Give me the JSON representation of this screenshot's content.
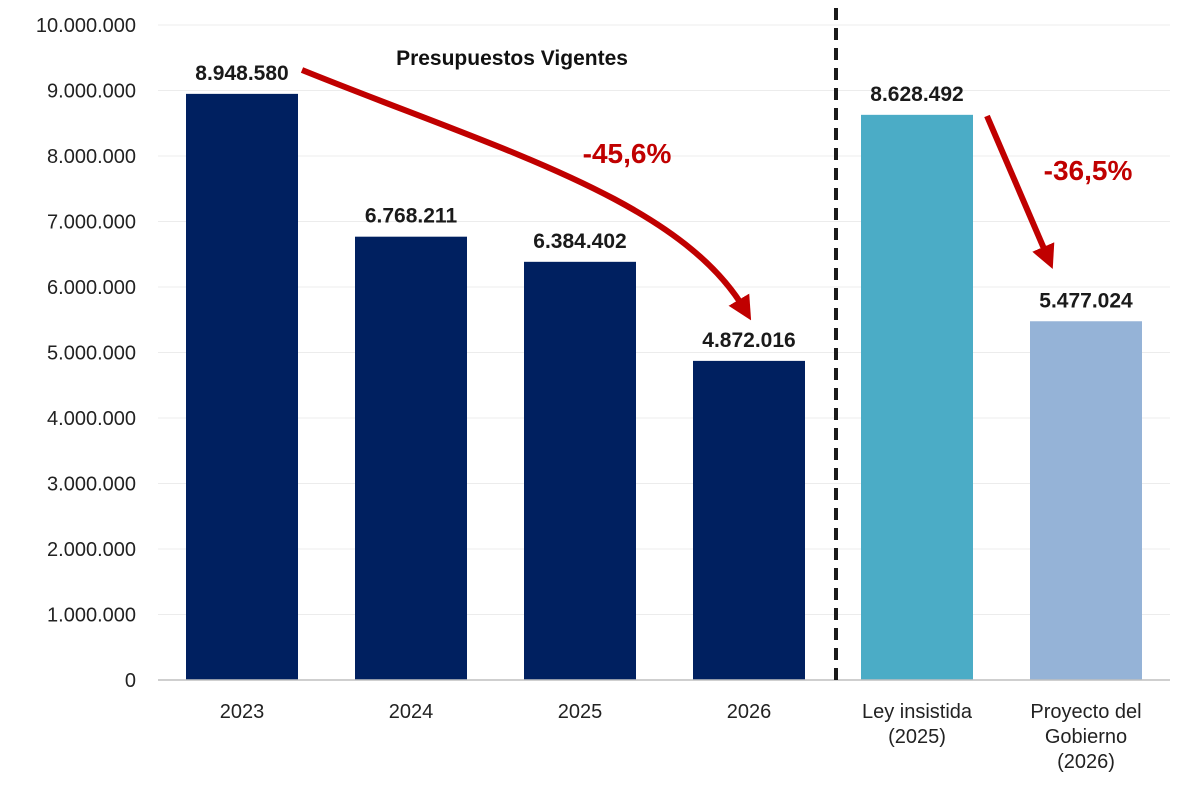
{
  "chart_data": {
    "type": "bar",
    "title": "Presupuestos Vigentes",
    "xlabel": "",
    "ylabel": "",
    "ylim": [
      0,
      10000000
    ],
    "yticks": [
      "0",
      "1.000.000",
      "2.000.000",
      "3.000.000",
      "4.000.000",
      "5.000.000",
      "6.000.000",
      "7.000.000",
      "8.000.000",
      "9.000.000",
      "10.000.000"
    ],
    "grid": true,
    "categories": [
      [
        "2023"
      ],
      [
        "2024"
      ],
      [
        "2025"
      ],
      [
        "2026"
      ],
      [
        "Ley insistida",
        "(2025)"
      ],
      [
        "Proyecto del",
        "Gobierno",
        "(2026)"
      ]
    ],
    "values": [
      8948580,
      6768211,
      6384402,
      4872016,
      8628492,
      5477024
    ],
    "value_labels": [
      "8.948.580",
      "6.768.211",
      "6.384.402",
      "4.872.016",
      "8.628.492",
      "5.477.024"
    ],
    "colors": [
      "#002060",
      "#002060",
      "#002060",
      "#002060",
      "#4bacc6",
      "#95b3d7"
    ],
    "annotations": [
      {
        "text": "-45,6%",
        "from": "2023",
        "to": "2026",
        "color": "#c00000"
      },
      {
        "text": "-36,5%",
        "from": "Ley insistida (2025)",
        "to": "Proyecto del Gobierno (2026)",
        "color": "#c00000"
      }
    ],
    "separator": "dashed line between 2026 and Ley insistida (2025)"
  }
}
